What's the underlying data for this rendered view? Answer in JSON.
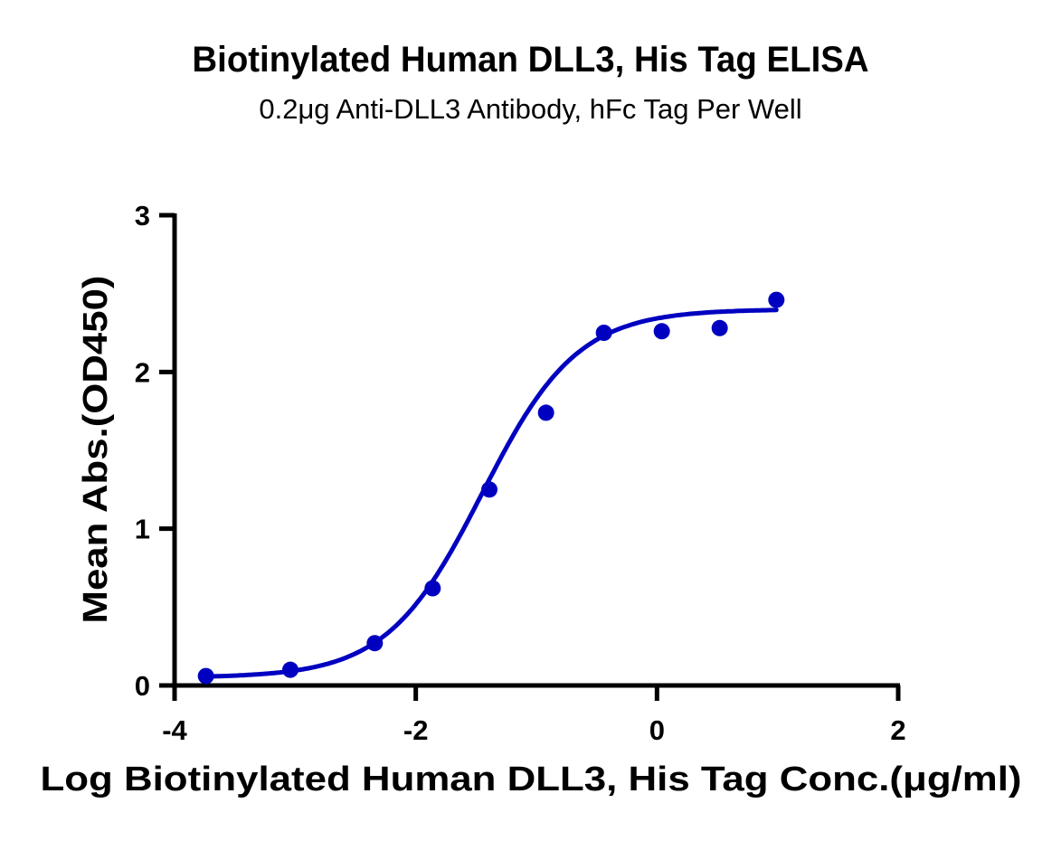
{
  "chart_data": {
    "type": "scatter",
    "title": "Biotinylated Human DLL3, His Tag ELISA",
    "subtitle": "0.2μg Anti-DLL3 Antibody, hFc Tag Per Well",
    "xlabel": "Log Biotinylated Human DLL3, His Tag Conc.(μg/ml)",
    "ylabel": "Mean Abs.(OD450)",
    "xlim": [
      -4,
      2
    ],
    "ylim": [
      0,
      3
    ],
    "x_ticks": [
      "-4",
      "-2",
      "0",
      "2"
    ],
    "y_ticks": [
      "0",
      "1",
      "2",
      "3"
    ],
    "grid": false,
    "legend": null,
    "colors": {
      "series": "#0000c0",
      "axes": "#000000"
    },
    "series": [
      {
        "name": "Mean Abs.(OD450)",
        "marker": "circle",
        "fit": "sigmoidal 4PL",
        "x": [
          -3.74,
          -3.04,
          -2.34,
          -1.86,
          -1.39,
          -0.92,
          -0.44,
          0.04,
          0.52,
          0.99
        ],
        "y": [
          0.06,
          0.1,
          0.27,
          0.62,
          1.25,
          1.74,
          2.25,
          2.26,
          2.28,
          2.46
        ]
      }
    ],
    "fit_params": {
      "bottom": 0.05,
      "top": 2.4,
      "logEC50": -1.45,
      "hill": 1.1
    }
  }
}
